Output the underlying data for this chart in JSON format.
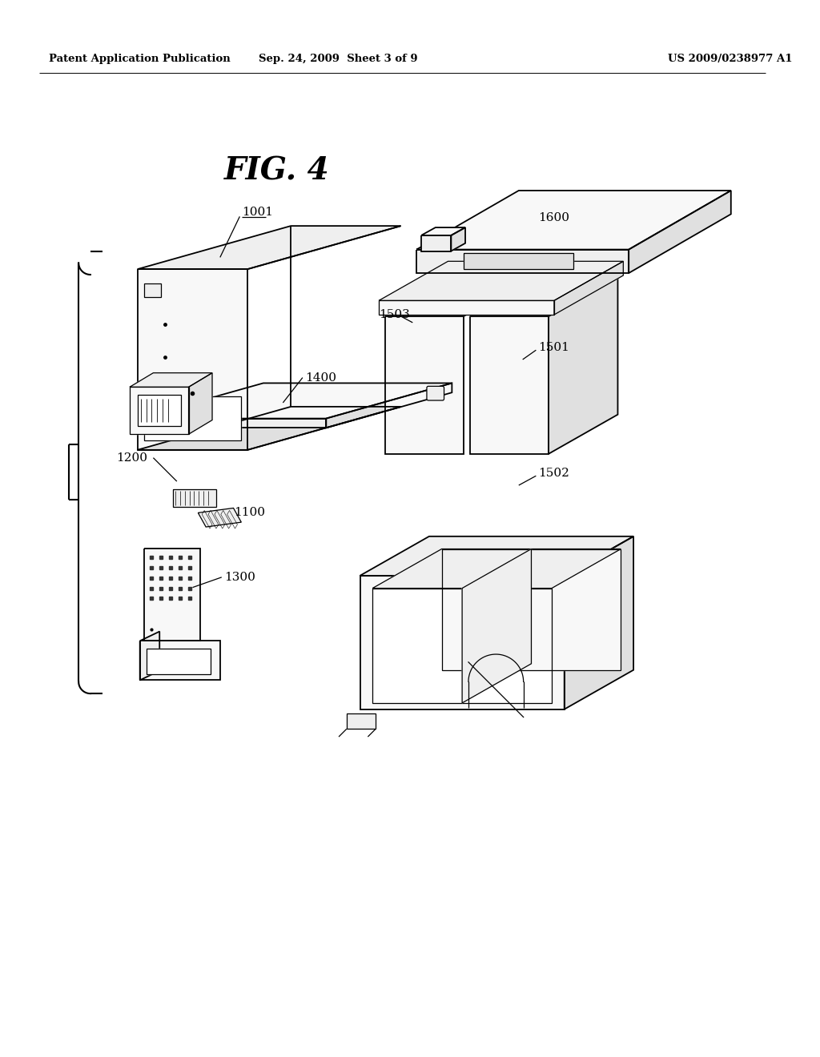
{
  "bg_color": "#ffffff",
  "header_left": "Patent Application Publication",
  "header_mid": "Sep. 24, 2009  Sheet 3 of 9",
  "header_right": "US 2009/0238977 A1",
  "fig_label": "FIG. 4",
  "lw": 1.3,
  "lwt": 0.9,
  "lc": "#000000",
  "fill_light": "#f8f8f8",
  "fill_mid": "#efefef",
  "fill_dark": "#e0e0e0",
  "fill_white": "#ffffff"
}
